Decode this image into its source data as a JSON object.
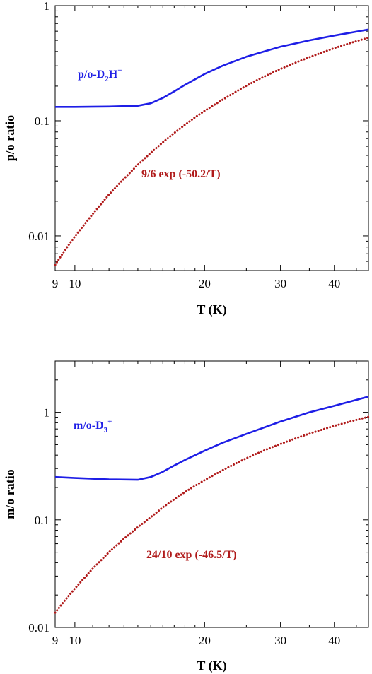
{
  "chart_data": [
    {
      "type": "line",
      "xlabel": "T (K)",
      "ylabel": "p/o ratio",
      "xscale": "log",
      "yscale": "log",
      "xlim": [
        9,
        48
      ],
      "ylim": [
        0.005,
        1
      ],
      "xticks": [
        9,
        10,
        20,
        30,
        40
      ],
      "xtick_labels": [
        "9",
        "10",
        "20",
        "30",
        "40"
      ],
      "yticks": [
        0.01,
        0.1,
        1
      ],
      "ytick_labels": [
        "0.01",
        "0.1",
        "1"
      ],
      "grid": false,
      "series": [
        {
          "name": "p/o-D2H+",
          "label_main": "p/o-D",
          "label_sub": "2",
          "label_rest": "H",
          "label_sup": "+",
          "style": "solid",
          "color": "#1e1ee6",
          "x": [
            9,
            10,
            12,
            14,
            15,
            16,
            17,
            18,
            20,
            22,
            25,
            30,
            35,
            40,
            48
          ],
          "y": [
            0.132,
            0.132,
            0.133,
            0.135,
            0.142,
            0.158,
            0.18,
            0.205,
            0.255,
            0.3,
            0.36,
            0.44,
            0.5,
            0.55,
            0.62
          ]
        },
        {
          "name": "9/6  exp  (-50.2/T)",
          "label_main": "9/6  exp  (-50.2/T)",
          "style": "dotted",
          "color": "#b01a1a",
          "x": [
            9,
            9.5,
            10,
            11,
            12,
            13,
            14,
            15,
            16,
            17,
            18,
            19,
            20,
            22,
            24,
            26,
            28,
            30,
            33,
            36,
            40,
            44,
            48
          ],
          "y": [
            0.0056,
            0.0076,
            0.0099,
            0.0155,
            0.0229,
            0.0314,
            0.0415,
            0.0527,
            0.0651,
            0.0783,
            0.0921,
            0.107,
            0.122,
            0.152,
            0.185,
            0.218,
            0.25,
            0.282,
            0.327,
            0.371,
            0.428,
            0.479,
            0.527
          ]
        }
      ]
    },
    {
      "type": "line",
      "xlabel": "T (K)",
      "ylabel": "m/o ratio",
      "xscale": "log",
      "yscale": "log",
      "xlim": [
        9,
        48
      ],
      "ylim": [
        0.01,
        3
      ],
      "xticks": [
        9,
        10,
        20,
        30,
        40
      ],
      "xtick_labels": [
        "9",
        "10",
        "20",
        "30",
        "40"
      ],
      "yticks": [
        0.01,
        0.1,
        1
      ],
      "ytick_labels": [
        "0.01",
        "0.1",
        "1"
      ],
      "grid": false,
      "series": [
        {
          "name": "m/o-D3+",
          "label_main": "m/o-D",
          "label_sub": "3",
          "label_rest": "",
          "label_sup": "+",
          "style": "solid",
          "color": "#1e1ee6",
          "x": [
            9,
            10,
            12,
            14,
            15,
            16,
            17,
            18,
            20,
            22,
            25,
            30,
            35,
            40,
            48
          ],
          "y": [
            0.25,
            0.245,
            0.238,
            0.236,
            0.25,
            0.28,
            0.32,
            0.36,
            0.44,
            0.52,
            0.63,
            0.82,
            1.0,
            1.15,
            1.4
          ]
        },
        {
          "name": "24/10  exp  (-46.5/T)",
          "label_main": "24/10  exp  (-46.5/T)",
          "style": "dotted",
          "color": "#b01a1a",
          "x": [
            9,
            9.5,
            10,
            11,
            12,
            13,
            14,
            15,
            16,
            17,
            18,
            19,
            20,
            22,
            24,
            26,
            28,
            30,
            33,
            36,
            40,
            44,
            48
          ],
          "y": [
            0.0137,
            0.018,
            0.023,
            0.0352,
            0.05,
            0.0668,
            0.0856,
            0.106,
            0.131,
            0.155,
            0.181,
            0.207,
            0.234,
            0.289,
            0.346,
            0.402,
            0.456,
            0.508,
            0.585,
            0.657,
            0.748,
            0.831,
            0.908
          ]
        }
      ]
    }
  ]
}
